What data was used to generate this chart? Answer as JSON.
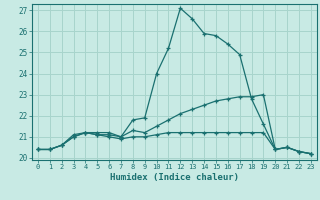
{
  "xlabel": "Humidex (Indice chaleur)",
  "x": [
    0,
    1,
    2,
    3,
    4,
    5,
    6,
    7,
    8,
    9,
    10,
    11,
    12,
    13,
    14,
    15,
    16,
    17,
    18,
    19,
    20,
    21,
    22,
    23
  ],
  "line1": [
    20.4,
    20.4,
    20.6,
    21.1,
    21.2,
    21.2,
    21.2,
    21.0,
    21.8,
    21.9,
    24.0,
    25.2,
    27.1,
    26.6,
    25.9,
    25.8,
    25.4,
    24.9,
    22.8,
    21.6,
    20.4,
    20.5,
    20.3,
    20.2
  ],
  "line2": [
    20.4,
    20.4,
    20.6,
    21.0,
    21.2,
    21.1,
    21.1,
    21.0,
    21.3,
    21.2,
    21.5,
    21.8,
    22.1,
    22.3,
    22.5,
    22.7,
    22.8,
    22.9,
    22.9,
    23.0,
    20.4,
    20.5,
    20.3,
    20.2
  ],
  "line3": [
    20.4,
    20.4,
    20.6,
    21.0,
    21.2,
    21.1,
    21.0,
    20.9,
    21.0,
    21.0,
    21.1,
    21.2,
    21.2,
    21.2,
    21.2,
    21.2,
    21.2,
    21.2,
    21.2,
    21.2,
    20.4,
    20.5,
    20.3,
    20.2
  ],
  "bg_color": "#c8eae4",
  "grid_color": "#a8d4cc",
  "line_color": "#1a7070",
  "ylim": [
    19.9,
    27.3
  ],
  "yticks": [
    20,
    21,
    22,
    23,
    24,
    25,
    26,
    27
  ],
  "xlim": [
    -0.5,
    23.5
  ],
  "xticks": [
    0,
    1,
    2,
    3,
    4,
    5,
    6,
    7,
    8,
    9,
    10,
    11,
    12,
    13,
    14,
    15,
    16,
    17,
    18,
    19,
    20,
    21,
    22,
    23
  ]
}
